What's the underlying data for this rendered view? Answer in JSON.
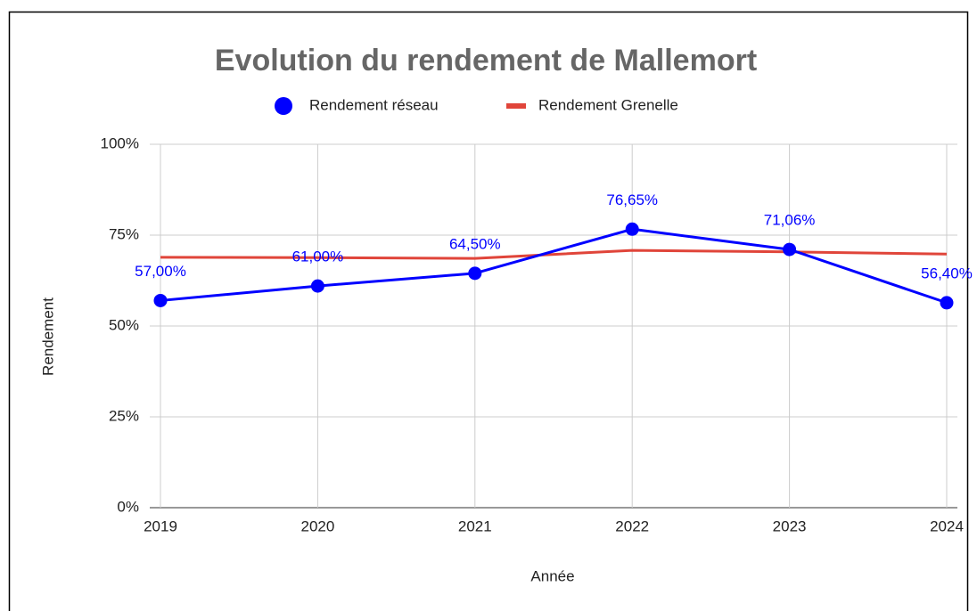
{
  "chart_data": {
    "type": "line",
    "title": "Evolution du rendement de Mallemort",
    "x_label": "Année",
    "y_label": "Rendement",
    "categories": [
      "2019",
      "2020",
      "2021",
      "2022",
      "2023",
      "2024"
    ],
    "series": [
      {
        "name": "Rendement réseau",
        "color": "#0000ff",
        "marker": "circle",
        "values": [
          57,
          61,
          64.5,
          76.65,
          71.06,
          56.4
        ],
        "value_labels": [
          "57,00%",
          "61,00%",
          "64,50%",
          "76,65%",
          "71,06%",
          "56,40%"
        ]
      },
      {
        "name": "Rendement Grenelle",
        "color": "#e0453a",
        "values": [
          68.9,
          68.8,
          68.6,
          70.8,
          70.4,
          69.8
        ]
      }
    ],
    "ylim": [
      0,
      100
    ],
    "yticks": [
      {
        "value": 0,
        "label": "0%"
      },
      {
        "value": 25,
        "label": "25%"
      },
      {
        "value": 50,
        "label": "50%"
      },
      {
        "value": 75,
        "label": "75%"
      },
      {
        "value": 100,
        "label": "100%"
      }
    ],
    "grid": true
  }
}
